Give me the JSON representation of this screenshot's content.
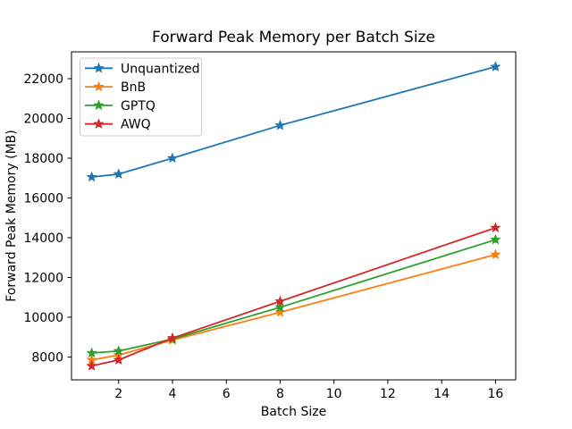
{
  "figure": {
    "title": "Forward Peak Memory per Batch Size",
    "xlabel": "Batch Size",
    "ylabel": "Forward Peak Memory (MB)"
  },
  "chart_data": {
    "type": "line",
    "title": "Forward Peak Memory per Batch Size",
    "xlabel": "Batch Size",
    "ylabel": "Forward Peak Memory (MB)",
    "x": [
      1,
      2,
      4,
      8,
      16
    ],
    "series": [
      {
        "name": "Unquantized",
        "color": "#1f77b4",
        "values": [
          17050,
          17200,
          18000,
          19650,
          22600
        ]
      },
      {
        "name": "BnB",
        "color": "#ff7f0e",
        "values": [
          7850,
          8100,
          8850,
          10250,
          13150
        ]
      },
      {
        "name": "GPTQ",
        "color": "#2ca02c",
        "values": [
          8200,
          8300,
          8900,
          10500,
          13900
        ]
      },
      {
        "name": "AWQ",
        "color": "#d62728",
        "values": [
          7550,
          7850,
          8950,
          10800,
          14500
        ]
      }
    ],
    "marker": "star",
    "xlim": [
      0.25,
      16.75
    ],
    "ylim": [
      6850,
      23350
    ],
    "xticks": [
      2,
      4,
      6,
      8,
      10,
      12,
      14,
      16
    ],
    "yticks": [
      8000,
      10000,
      12000,
      14000,
      16000,
      18000,
      20000,
      22000
    ],
    "grid": false,
    "legend_position": "upper left",
    "background": "#ffffff",
    "spine_color": "#000000",
    "legend_border_color": "#cccccc"
  }
}
